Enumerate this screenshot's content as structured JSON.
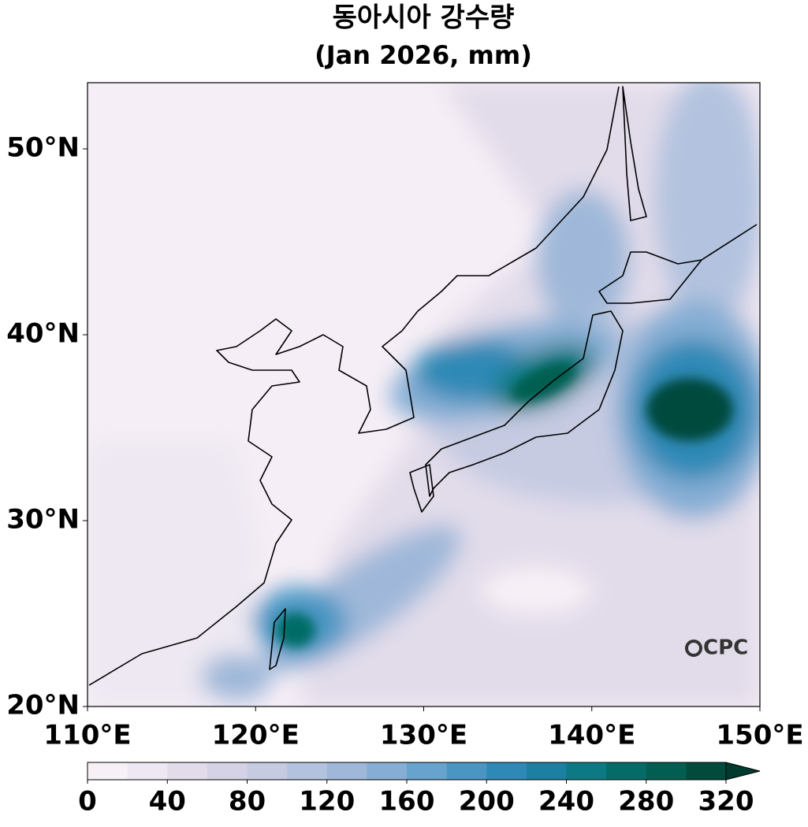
{
  "title": "동아시아 강수량",
  "subtitle": "(Jan 2026, mm)",
  "map": {
    "type": "map",
    "xlim": [
      110,
      150
    ],
    "ylim": [
      20,
      53.56
    ],
    "xticks": [
      {
        "value": 110,
        "label": "110°E"
      },
      {
        "value": 120,
        "label": "120°E"
      },
      {
        "value": 130,
        "label": "130°E"
      },
      {
        "value": 140,
        "label": "140°E"
      },
      {
        "value": 150,
        "label": "150°E"
      }
    ],
    "yticks": [
      {
        "value": 20,
        "label": "20°N"
      },
      {
        "value": 30,
        "label": "30°N"
      },
      {
        "value": 40,
        "label": "40°N"
      },
      {
        "value": 50,
        "label": "50°N"
      }
    ]
  },
  "colorbar": {
    "range": [
      0,
      320
    ],
    "ticks": [
      0,
      40,
      80,
      120,
      160,
      200,
      240,
      280,
      320
    ],
    "colors": [
      "#f8f0f7",
      "#ede8f2",
      "#e2dcea",
      "#d5d2e6",
      "#c6cbe2",
      "#b3c3df",
      "#9fb8d9",
      "#86aed4",
      "#68a3cd",
      "#4a96c3",
      "#2f89b6",
      "#1b80a2",
      "#0b7a84",
      "#036c66",
      "#025e50",
      "#014a3c"
    ],
    "extend_color": "#013b2f"
  },
  "logo": "CPC"
}
